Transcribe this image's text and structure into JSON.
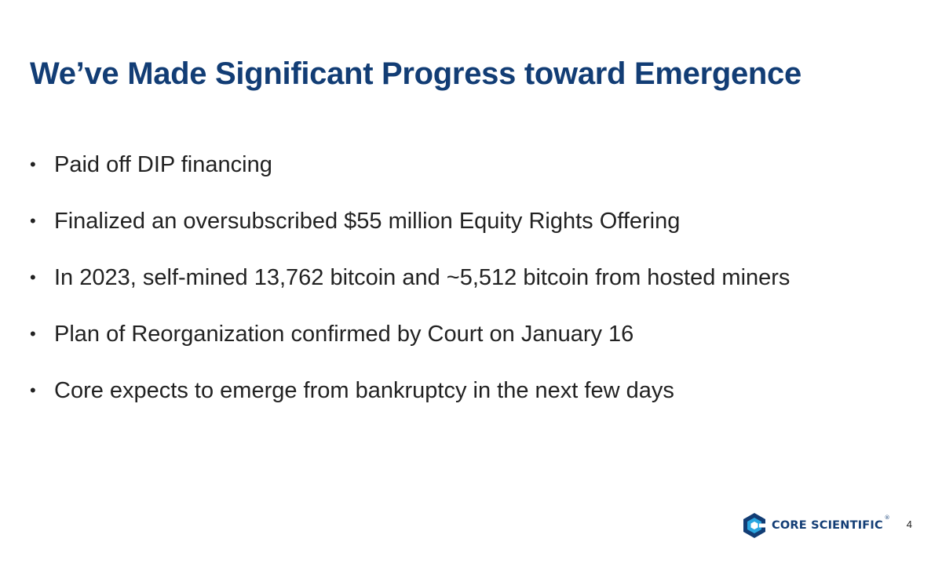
{
  "slide": {
    "title": "We’ve Made Significant Progress toward Emergence",
    "bullet_marker": "•",
    "bullets": [
      "Paid off DIP financing",
      "Finalized an oversubscribed $55 million Equity Rights Offering",
      "In 2023, self-mined 13,762 bitcoin and ~5,512 bitcoin from hosted miners",
      "Plan of Reorganization confirmed by Court on January 16",
      "Core expects to emerge from bankruptcy in the next few days"
    ]
  },
  "footer": {
    "logo_text": "CORE SCIENTIFIC",
    "logo_registered": "®",
    "page_number": "4"
  },
  "colors": {
    "title": "#123d75",
    "body_text": "#222222",
    "logo_blue": "#123d75",
    "logo_cyan": "#2aa6e0",
    "background": "#ffffff"
  }
}
